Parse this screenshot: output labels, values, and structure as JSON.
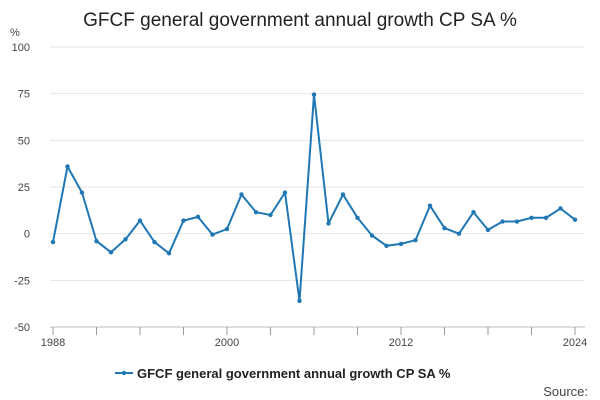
{
  "chart_data": {
    "type": "line",
    "title": "GFCF general government annual growth CP SA %",
    "ylabel": "%",
    "xlabel": "",
    "ylim": [
      -50,
      100
    ],
    "xlim": [
      1988,
      2024
    ],
    "yticks": [
      100,
      75,
      50,
      25,
      0,
      -25,
      -50
    ],
    "yticks_labels": [
      "100",
      "75",
      "50",
      "25",
      "0",
      "-25",
      "-50"
    ],
    "xticks": [
      1988,
      2000,
      2012,
      2024
    ],
    "xticks_labels": [
      "1988",
      "2000",
      "2012",
      "2024"
    ],
    "grid": true,
    "legend_position": "bottom-center",
    "series": [
      {
        "name": "GFCF general government annual growth CP SA %",
        "color": "#1f77b4",
        "x": [
          1988,
          1989,
          1990,
          1991,
          1992,
          1993,
          1994,
          1995,
          1996,
          1997,
          1998,
          1999,
          2000,
          2001,
          2002,
          2003,
          2004,
          2005,
          2006,
          2007,
          2008,
          2009,
          2010,
          2011,
          2012,
          2013,
          2014,
          2015,
          2016,
          2017,
          2018,
          2019,
          2020,
          2021,
          2022,
          2023,
          2024
        ],
        "values": [
          -4.5,
          36,
          22,
          -4,
          -10,
          -3,
          7,
          -4.5,
          -10.5,
          7,
          9,
          -0.5,
          2.5,
          21,
          11.5,
          10,
          22,
          -36,
          74.5,
          5.5,
          21,
          8.5,
          -1,
          -6.5,
          -5.5,
          -3.5,
          15,
          3,
          0,
          11.5,
          2,
          6.5,
          6.5,
          8.5,
          8.5,
          13.5,
          7.5
        ]
      }
    ],
    "legend": [
      "GFCF general government annual growth CP SA %"
    ],
    "source_label": "Source:"
  }
}
